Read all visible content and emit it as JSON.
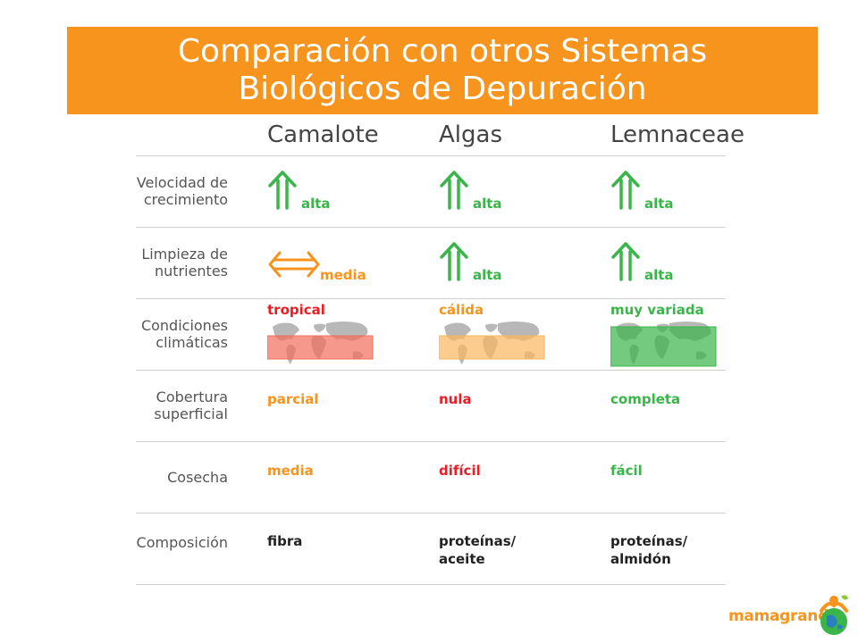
{
  "title": {
    "line1": "Comparación con otros Sistemas",
    "line2": "Biológicos de Depuración"
  },
  "colors": {
    "banner": "#f7941d",
    "green": "#39b54a",
    "orange": "#f7941d",
    "red": "#ed1c24",
    "black": "#222222"
  },
  "columns": [
    "Camalote",
    "Algas",
    "Lemnaceae"
  ],
  "rows": [
    {
      "label": [
        "Velocidad de",
        "crecimiento"
      ],
      "cells": [
        {
          "icon": "double-up-arrow-icon",
          "text": "alta",
          "color": "green"
        },
        {
          "icon": "double-up-arrow-icon",
          "text": "alta",
          "color": "green"
        },
        {
          "icon": "double-up-arrow-icon",
          "text": "alta",
          "color": "green"
        }
      ]
    },
    {
      "label": [
        "Limpieza de",
        "nutrientes"
      ],
      "cells": [
        {
          "icon": "double-horizontal-arrow-icon",
          "text": "media",
          "color": "orange"
        },
        {
          "icon": "double-up-arrow-icon",
          "text": "alta",
          "color": "green"
        },
        {
          "icon": "double-up-arrow-icon",
          "text": "alta",
          "color": "green"
        }
      ]
    },
    {
      "label": [
        "Condiciones",
        "climáticas"
      ],
      "cells": [
        {
          "icon": "world-map-icon",
          "text": "tropical",
          "color": "red",
          "band": "#f26d5b"
        },
        {
          "icon": "world-map-icon",
          "text": "cálida",
          "color": "orange",
          "band": "#fbb65e"
        },
        {
          "icon": "world-map-icon",
          "text": "muy variada",
          "color": "green",
          "band": "#39b54a"
        }
      ]
    },
    {
      "label": [
        "Cobertura",
        "superficial"
      ],
      "cells": [
        {
          "text": "parcial",
          "color": "orange"
        },
        {
          "text": "nula",
          "color": "red"
        },
        {
          "text": "completa",
          "color": "green"
        }
      ]
    },
    {
      "label": [
        "Cosecha"
      ],
      "cells": [
        {
          "text": "media",
          "color": "orange"
        },
        {
          "text": "difícil",
          "color": "red"
        },
        {
          "text": "fácil",
          "color": "green"
        }
      ]
    },
    {
      "label": [
        "Composición"
      ],
      "cells": [
        {
          "text": [
            "fibra"
          ],
          "color": "black"
        },
        {
          "text": [
            "proteínas/",
            "aceite"
          ],
          "color": "black"
        },
        {
          "text": [
            "proteínas/",
            "almidón"
          ],
          "color": "black"
        }
      ]
    }
  ],
  "logo": {
    "text": "mamagrande",
    "icon": "globe-figure-logo-icon"
  }
}
